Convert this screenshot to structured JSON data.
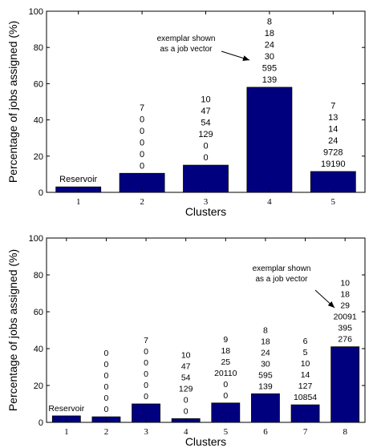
{
  "chart_data": [
    {
      "type": "bar",
      "xlabel": "Clusters",
      "ylabel": "Percentage of jobs assigned (%)",
      "ylim": [
        0,
        100
      ],
      "yticks": [
        0,
        20,
        40,
        60,
        80,
        100
      ],
      "grid": false,
      "bar_color": "#00007f",
      "categories": [
        "1",
        "2",
        "3",
        "4",
        "5"
      ],
      "values": [
        3,
        10.5,
        15,
        58,
        11.5
      ],
      "bar_labels": [
        [
          "Reservoir"
        ],
        [
          "7",
          "0",
          "0",
          "0",
          "0",
          "0"
        ],
        [
          "10",
          "47",
          "54",
          "129",
          "0",
          "0"
        ],
        [
          "8",
          "18",
          "24",
          "30",
          "595",
          "139"
        ],
        [
          "7",
          "13",
          "14",
          "24",
          "9728",
          "19190"
        ]
      ],
      "annotation": {
        "lines": [
          "exemplar shown",
          "as a job vector"
        ],
        "points_to_category": "4"
      }
    },
    {
      "type": "bar",
      "xlabel": "Clusters",
      "ylabel": "Percentage of jobs assigned (%)",
      "ylim": [
        0,
        100
      ],
      "yticks": [
        0,
        20,
        40,
        60,
        80,
        100
      ],
      "grid": false,
      "bar_color": "#00007f",
      "categories": [
        "1",
        "2",
        "3",
        "4",
        "5",
        "6",
        "7",
        "8"
      ],
      "values": [
        3.5,
        3,
        10,
        2,
        10.5,
        15.5,
        9.5,
        41
      ],
      "bar_labels": [
        [
          "Reservoir"
        ],
        [
          "0",
          "0",
          "0",
          "0",
          "0",
          "0"
        ],
        [
          "7",
          "0",
          "0",
          "0",
          "0",
          "0"
        ],
        [
          "10",
          "47",
          "54",
          "129",
          "0",
          "0"
        ],
        [
          "9",
          "18",
          "25",
          "20110",
          "0",
          "0"
        ],
        [
          "8",
          "18",
          "24",
          "30",
          "595",
          "139"
        ],
        [
          "6",
          "5",
          "10",
          "14",
          "127",
          "10854"
        ],
        [
          "10",
          "18",
          "29",
          "20091",
          "395",
          "276"
        ]
      ],
      "annotation": {
        "lines": [
          "exemplar shown",
          "as a job vector"
        ],
        "points_to_category": "8"
      }
    }
  ]
}
